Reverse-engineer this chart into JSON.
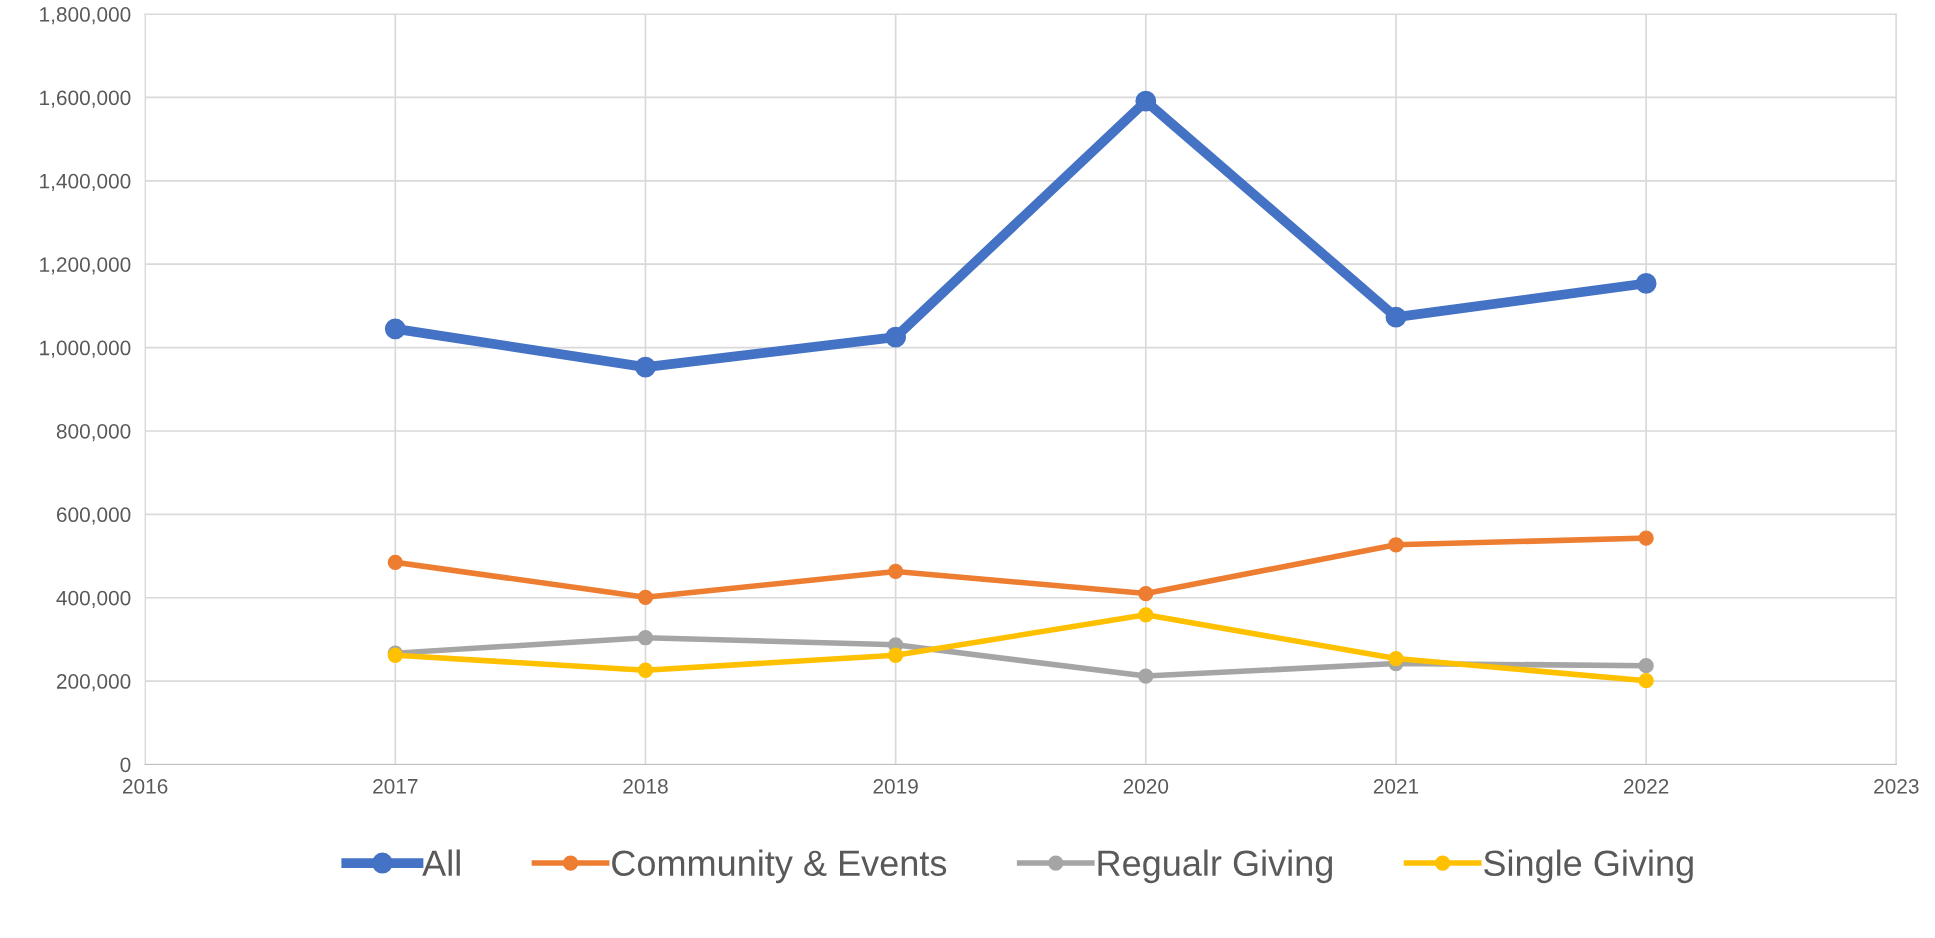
{
  "chart_data": {
    "type": "line",
    "x": [
      2017,
      2018,
      2019,
      2020,
      2021,
      2022
    ],
    "series": [
      {
        "name": "All",
        "color": "#4472c4",
        "values": [
          1045000,
          953000,
          1025000,
          1591000,
          1073000,
          1154000
        ]
      },
      {
        "name": "Community & Events",
        "color": "#ed7d31",
        "values": [
          485000,
          401000,
          463000,
          410000,
          527000,
          543000
        ]
      },
      {
        "name": "Regualr Giving",
        "color": "#a5a5a5",
        "values": [
          267000,
          304000,
          287000,
          212000,
          242000,
          237000
        ]
      },
      {
        "name": "Single Giving",
        "color": "#ffc000",
        "values": [
          262000,
          226000,
          262000,
          359000,
          254000,
          201000
        ]
      }
    ],
    "xlim": [
      2016,
      2023
    ],
    "xticks": [
      2016,
      2017,
      2018,
      2019,
      2020,
      2021,
      2022,
      2023
    ],
    "ylim": [
      0,
      1800000
    ],
    "yticks": [
      {
        "value": 0,
        "label": "0"
      },
      {
        "value": 200000,
        "label": "200,000"
      },
      {
        "value": 400000,
        "label": "400,000"
      },
      {
        "value": 600000,
        "label": "600,000"
      },
      {
        "value": 800000,
        "label": "800,000"
      },
      {
        "value": 1000000,
        "label": "1,000,000"
      },
      {
        "value": 1200000,
        "label": "1,200,000"
      },
      {
        "value": 1400000,
        "label": "1,400,000"
      },
      {
        "value": 1600000,
        "label": "1,600,000"
      },
      {
        "value": 1800000,
        "label": "1,800,000"
      }
    ],
    "grid": true,
    "legend": "bottom",
    "marker": "circle",
    "line_style": "solid"
  }
}
